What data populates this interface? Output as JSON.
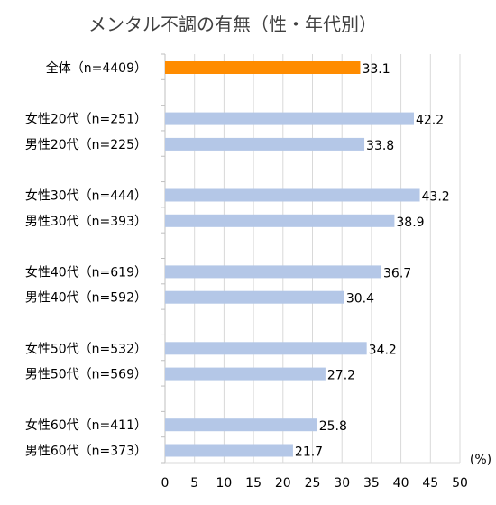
{
  "chart_data": {
    "type": "bar",
    "orientation": "horizontal",
    "title": "メンタル不調の有無（性・年代別）",
    "unit_label": "(%)",
    "xlim": [
      0,
      50
    ],
    "x_ticks": [
      "0",
      "5",
      "10",
      "15",
      "20",
      "25",
      "30",
      "35",
      "40",
      "45",
      "50"
    ],
    "grid": true,
    "legend": "none",
    "bars": [
      {
        "label": "全体（n=4409）",
        "value": 33.1,
        "value_label": "33.1",
        "color": "#ff8c00",
        "slot": 0
      },
      {
        "label": "女性20代（n=251）",
        "value": 42.2,
        "value_label": "42.2",
        "color": "#b4c7e7",
        "slot": 2
      },
      {
        "label": "男性20代（n=225）",
        "value": 33.8,
        "value_label": "33.8",
        "color": "#b4c7e7",
        "slot": 3
      },
      {
        "label": "女性30代（n=444）",
        "value": 43.2,
        "value_label": "43.2",
        "color": "#b4c7e7",
        "slot": 5
      },
      {
        "label": "男性30代（n=393）",
        "value": 38.9,
        "value_label": "38.9",
        "color": "#b4c7e7",
        "slot": 6
      },
      {
        "label": "女性40代（n=619）",
        "value": 36.7,
        "value_label": "36.7",
        "color": "#b4c7e7",
        "slot": 8
      },
      {
        "label": "男性40代（n=592）",
        "value": 30.4,
        "value_label": "30.4",
        "color": "#b4c7e7",
        "slot": 9
      },
      {
        "label": "女性50代（n=532）",
        "value": 34.2,
        "value_label": "34.2",
        "color": "#b4c7e7",
        "slot": 11
      },
      {
        "label": "男性50代（n=569）",
        "value": 27.2,
        "value_label": "27.2",
        "color": "#b4c7e7",
        "slot": 12
      },
      {
        "label": "女性60代（n=411）",
        "value": 25.8,
        "value_label": "25.8",
        "color": "#b4c7e7",
        "slot": 14
      },
      {
        "label": "男性60代（n=373）",
        "value": 21.7,
        "value_label": "21.7",
        "color": "#b4c7e7",
        "slot": 15
      }
    ]
  }
}
